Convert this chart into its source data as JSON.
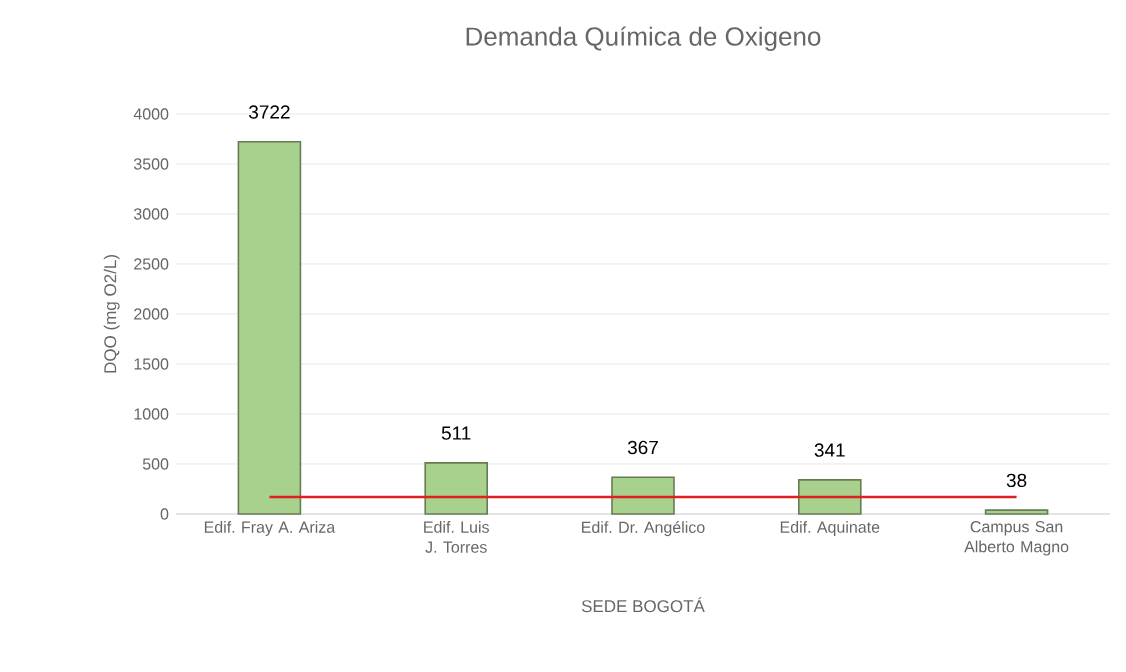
{
  "chart_data": {
    "type": "bar",
    "title": "Demanda Química de Oxigeno",
    "xlabel": "SEDE BOGOTÁ",
    "ylabel": "DQO (mg O2/L)",
    "categories": [
      "Edif. Fray A. Ariza",
      "Edif. Luis J. Torres",
      "Edif. Dr. Angélico",
      "Edif. Aquinate",
      "Campus San Alberto Magno"
    ],
    "series": [
      {
        "color": "#a9d18e",
        "values": [
          3722,
          511,
          367,
          341,
          38
        ],
        "value_labels": [
          "3722",
          "511",
          "367",
          "341",
          "38"
        ]
      },
      {
        "type": "line",
        "color": "#e02020",
        "values": [
          170,
          170,
          170,
          170,
          170
        ]
      }
    ],
    "ylim": [
      0,
      4000
    ],
    "yticks": [
      0,
      500,
      1000,
      1500,
      2000,
      2500,
      3000,
      3500,
      4000
    ],
    "grid": "y"
  }
}
